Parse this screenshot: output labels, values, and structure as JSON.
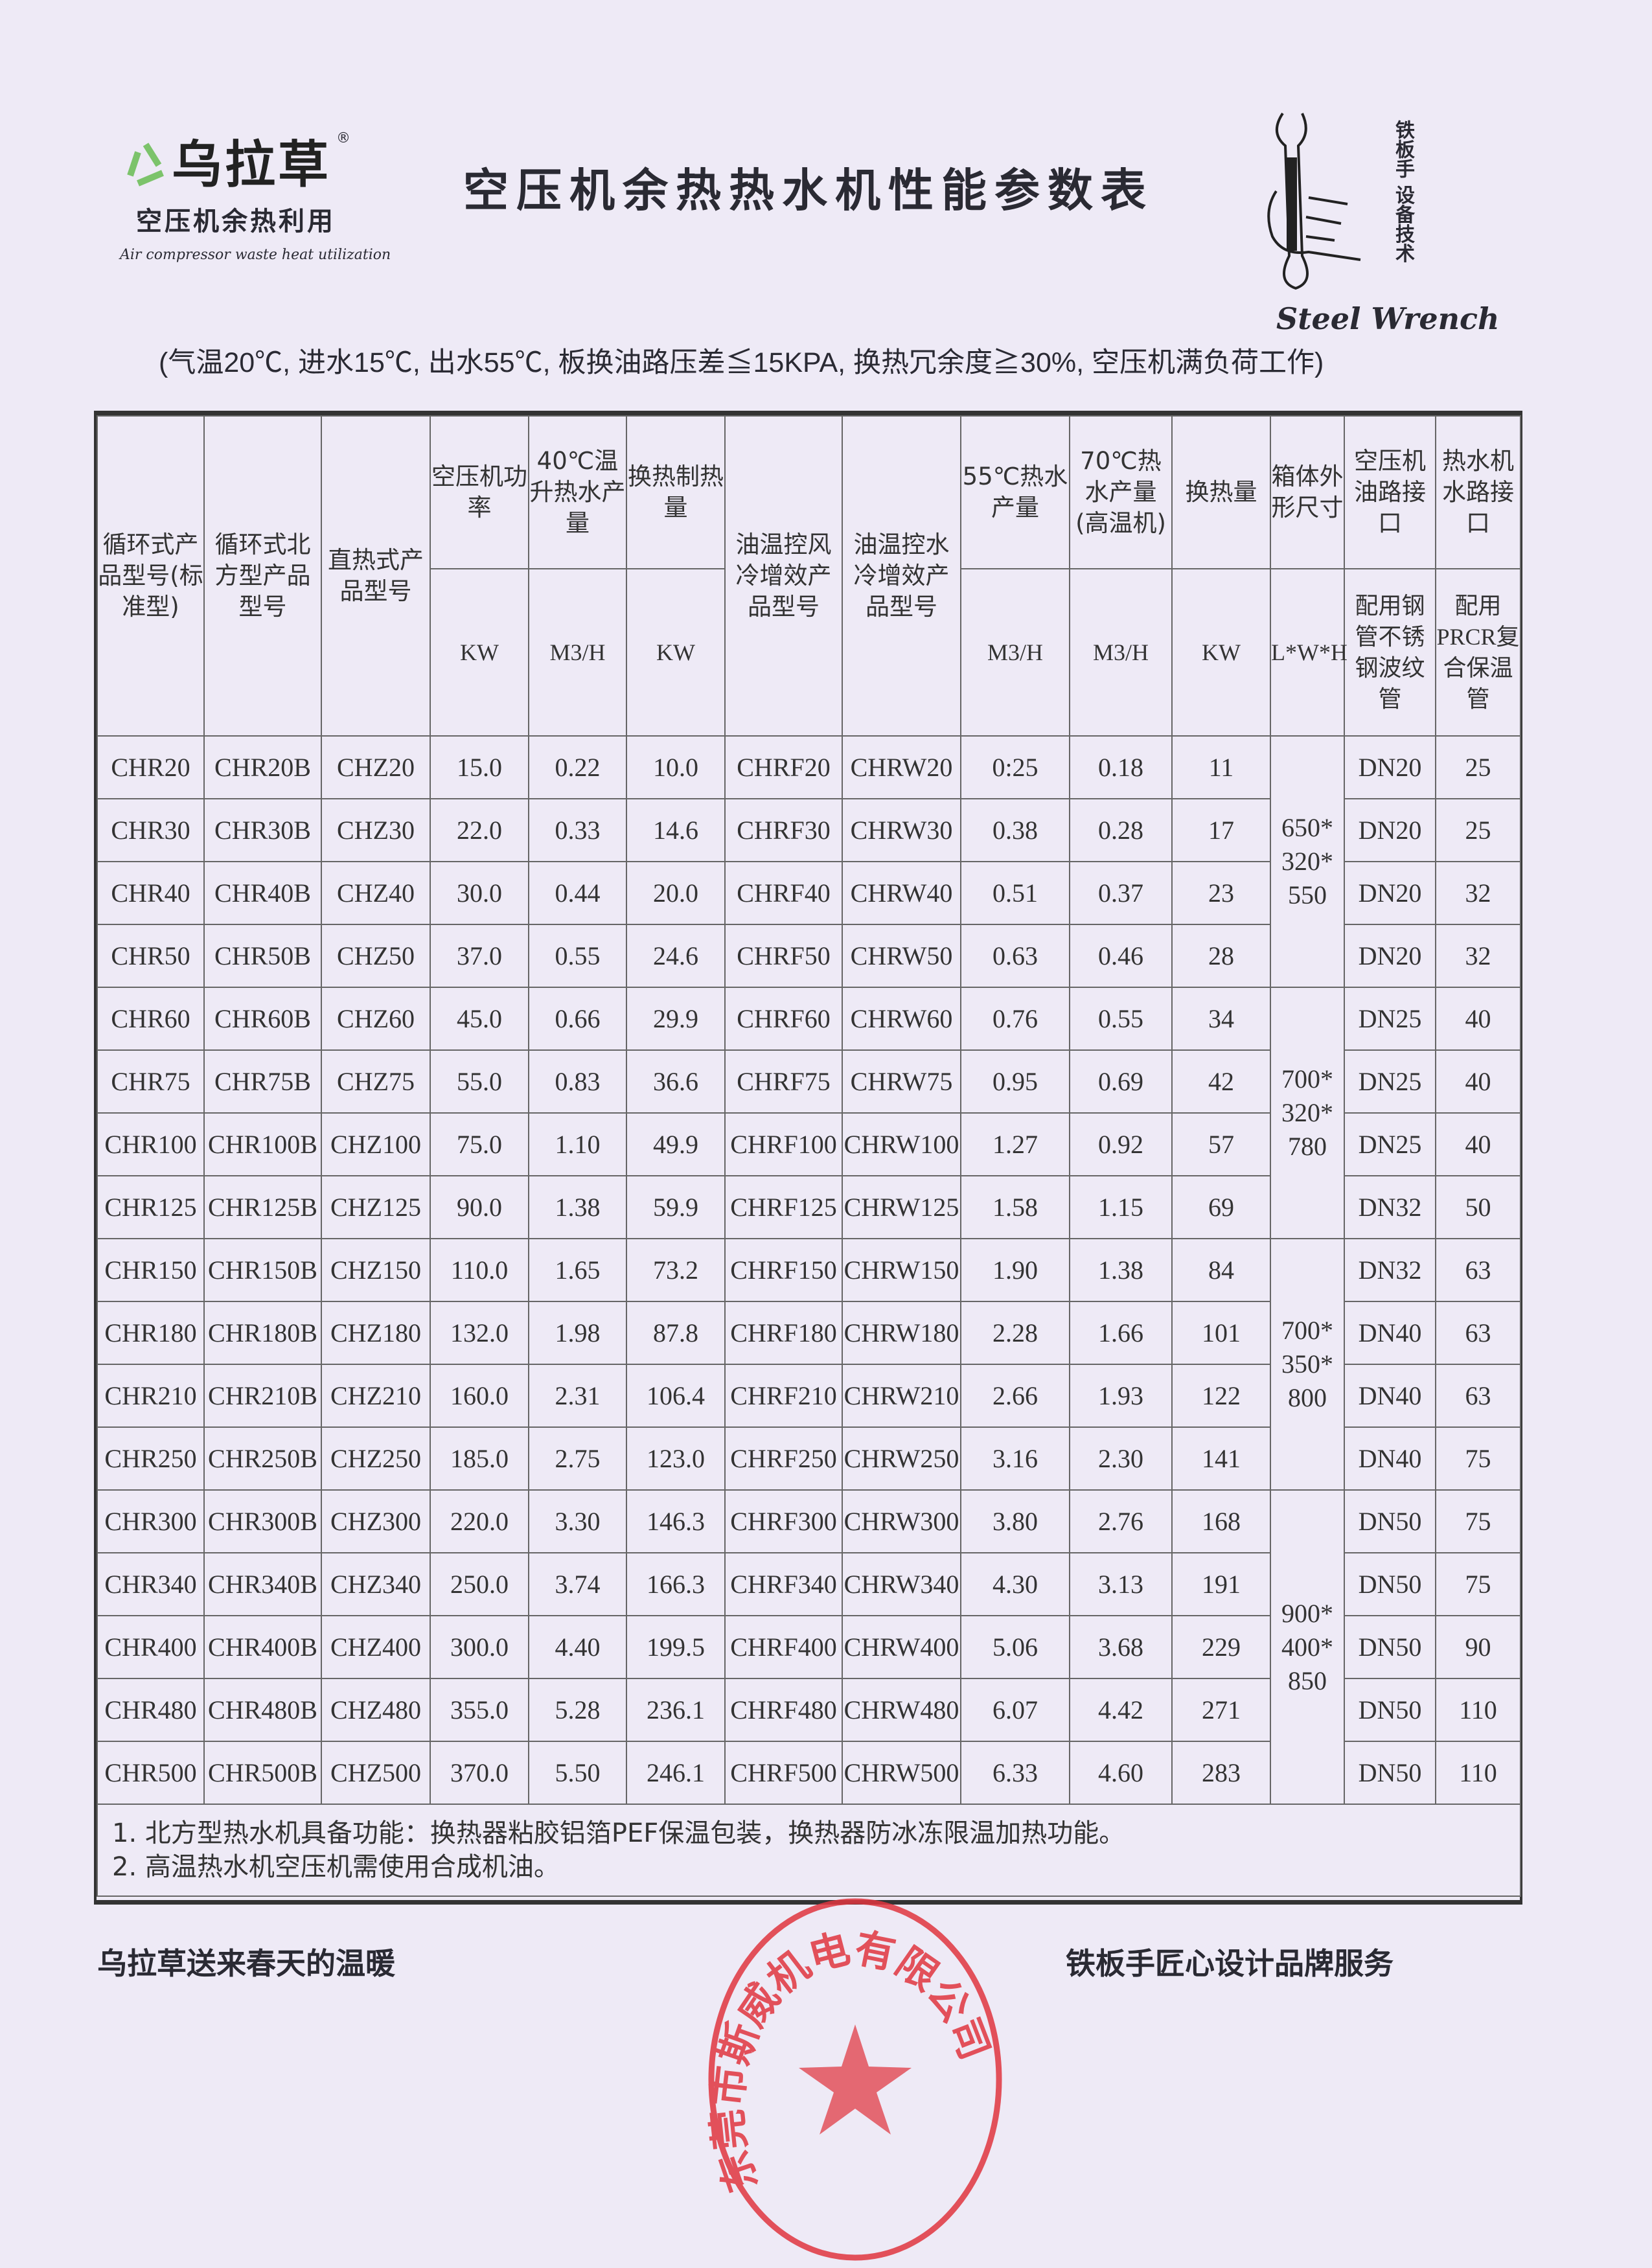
{
  "header": {
    "brand_name": "乌拉草",
    "brand_registered": "®",
    "brand_subtitle": "空压机余热利用",
    "brand_english": "Air compressor waste heat utilization",
    "title": "空压机余热热水机性能参数表",
    "wrench_logo_text": "铁板手 设备技术",
    "wrench_logo_english": "Steel Wrench",
    "subtitle": "(气温20℃, 进水15℃, 出水55℃, 板换油路压差≦15KPA, 换热冗余度≧30%, 空压机满负荷工作)"
  },
  "table": {
    "columns": [
      {
        "label": "循环式产品型号(标准型)",
        "unit": ""
      },
      {
        "label": "循环式北方型产品型号",
        "unit": ""
      },
      {
        "label": "直热式产品型号",
        "unit": ""
      },
      {
        "label": "空压机功率",
        "unit": "KW"
      },
      {
        "label": "40℃温升热水产量",
        "unit": "M3/H"
      },
      {
        "label": "换热制热量",
        "unit": "KW"
      },
      {
        "label": "油温控风冷增效产品型号",
        "unit": ""
      },
      {
        "label": "油温控水冷增效产品型号",
        "unit": ""
      },
      {
        "label": "55℃热水产量",
        "unit": "M3/H"
      },
      {
        "label": "70℃热水产量(高温机)",
        "unit": "M3/H"
      },
      {
        "label": "换热量",
        "unit": "KW"
      },
      {
        "label": "箱体外形尺寸",
        "unit": "L*W*H"
      },
      {
        "label": "空压机油路接口",
        "unit": "配用钢管不锈钢波纹管"
      },
      {
        "label": "热水机水路接口",
        "unit": "配用PRCR复合保温管"
      }
    ],
    "rows": [
      [
        "CHR20",
        "CHR20B",
        "CHZ20",
        "15.0",
        "0.22",
        "10.0",
        "CHRF20",
        "CHRW20",
        "0:25",
        "0.18",
        "11",
        "DN20",
        "25"
      ],
      [
        "CHR30",
        "CHR30B",
        "CHZ30",
        "22.0",
        "0.33",
        "14.6",
        "CHRF30",
        "CHRW30",
        "0.38",
        "0.28",
        "17",
        "DN20",
        "25"
      ],
      [
        "CHR40",
        "CHR40B",
        "CHZ40",
        "30.0",
        "0.44",
        "20.0",
        "CHRF40",
        "CHRW40",
        "0.51",
        "0.37",
        "23",
        "DN20",
        "32"
      ],
      [
        "CHR50",
        "CHR50B",
        "CHZ50",
        "37.0",
        "0.55",
        "24.6",
        "CHRF50",
        "CHRW50",
        "0.63",
        "0.46",
        "28",
        "DN20",
        "32"
      ],
      [
        "CHR60",
        "CHR60B",
        "CHZ60",
        "45.0",
        "0.66",
        "29.9",
        "CHRF60",
        "CHRW60",
        "0.76",
        "0.55",
        "34",
        "DN25",
        "40"
      ],
      [
        "CHR75",
        "CHR75B",
        "CHZ75",
        "55.0",
        "0.83",
        "36.6",
        "CHRF75",
        "CHRW75",
        "0.95",
        "0.69",
        "42",
        "DN25",
        "40"
      ],
      [
        "CHR100",
        "CHR100B",
        "CHZ100",
        "75.0",
        "1.10",
        "49.9",
        "CHRF100",
        "CHRW100",
        "1.27",
        "0.92",
        "57",
        "DN25",
        "40"
      ],
      [
        "CHR125",
        "CHR125B",
        "CHZ125",
        "90.0",
        "1.38",
        "59.9",
        "CHRF125",
        "CHRW125",
        "1.58",
        "1.15",
        "69",
        "DN32",
        "50"
      ],
      [
        "CHR150",
        "CHR150B",
        "CHZ150",
        "110.0",
        "1.65",
        "73.2",
        "CHRF150",
        "CHRW150",
        "1.90",
        "1.38",
        "84",
        "DN32",
        "63"
      ],
      [
        "CHR180",
        "CHR180B",
        "CHZ180",
        "132.0",
        "1.98",
        "87.8",
        "CHRF180",
        "CHRW180",
        "2.28",
        "1.66",
        "101",
        "DN40",
        "63"
      ],
      [
        "CHR210",
        "CHR210B",
        "CHZ210",
        "160.0",
        "2.31",
        "106.4",
        "CHRF210",
        "CHRW210",
        "2.66",
        "1.93",
        "122",
        "DN40",
        "63"
      ],
      [
        "CHR250",
        "CHR250B",
        "CHZ250",
        "185.0",
        "2.75",
        "123.0",
        "CHRF250",
        "CHRW250",
        "3.16",
        "2.30",
        "141",
        "DN40",
        "75"
      ],
      [
        "CHR300",
        "CHR300B",
        "CHZ300",
        "220.0",
        "3.30",
        "146.3",
        "CHRF300",
        "CHRW300",
        "3.80",
        "2.76",
        "168",
        "DN50",
        "75"
      ],
      [
        "CHR340",
        "CHR340B",
        "CHZ340",
        "250.0",
        "3.74",
        "166.3",
        "CHRF340",
        "CHRW340",
        "4.30",
        "3.13",
        "191",
        "DN50",
        "75"
      ],
      [
        "CHR400",
        "CHR400B",
        "CHZ400",
        "300.0",
        "4.40",
        "199.5",
        "CHRF400",
        "CHRW400",
        "5.06",
        "3.68",
        "229",
        "DN50",
        "90"
      ],
      [
        "CHR480",
        "CHR480B",
        "CHZ480",
        "355.0",
        "5.28",
        "236.1",
        "CHRF480",
        "CHRW480",
        "6.07",
        "4.42",
        "271",
        "DN50",
        "110"
      ],
      [
        "CHR500",
        "CHR500B",
        "CHZ500",
        "370.0",
        "5.50",
        "246.1",
        "CHRF500",
        "CHRW500",
        "6.33",
        "4.60",
        "283",
        "DN50",
        "110"
      ]
    ],
    "box_sizes": [
      {
        "text": "650*\n320*\n550",
        "rows": 4
      },
      {
        "text": "700*\n320*\n780",
        "rows": 4
      },
      {
        "text": "700*\n350*\n800",
        "rows": 4
      },
      {
        "text": "900*\n400*\n850",
        "rows": 5
      }
    ],
    "notes": [
      "1. 北方型热水机具备功能：换热器粘胶铝箔PEF保温包装，换热器防冰冻限温加热功能。",
      "2. 高温热水机空压机需使用合成机油。"
    ]
  },
  "footer": {
    "left": "乌拉草送来春天的温暖",
    "right": "铁板手匠心设计品牌服务"
  },
  "stamp": {
    "text": "东莞市斯威机电有限公司",
    "color": "#e0363f"
  }
}
